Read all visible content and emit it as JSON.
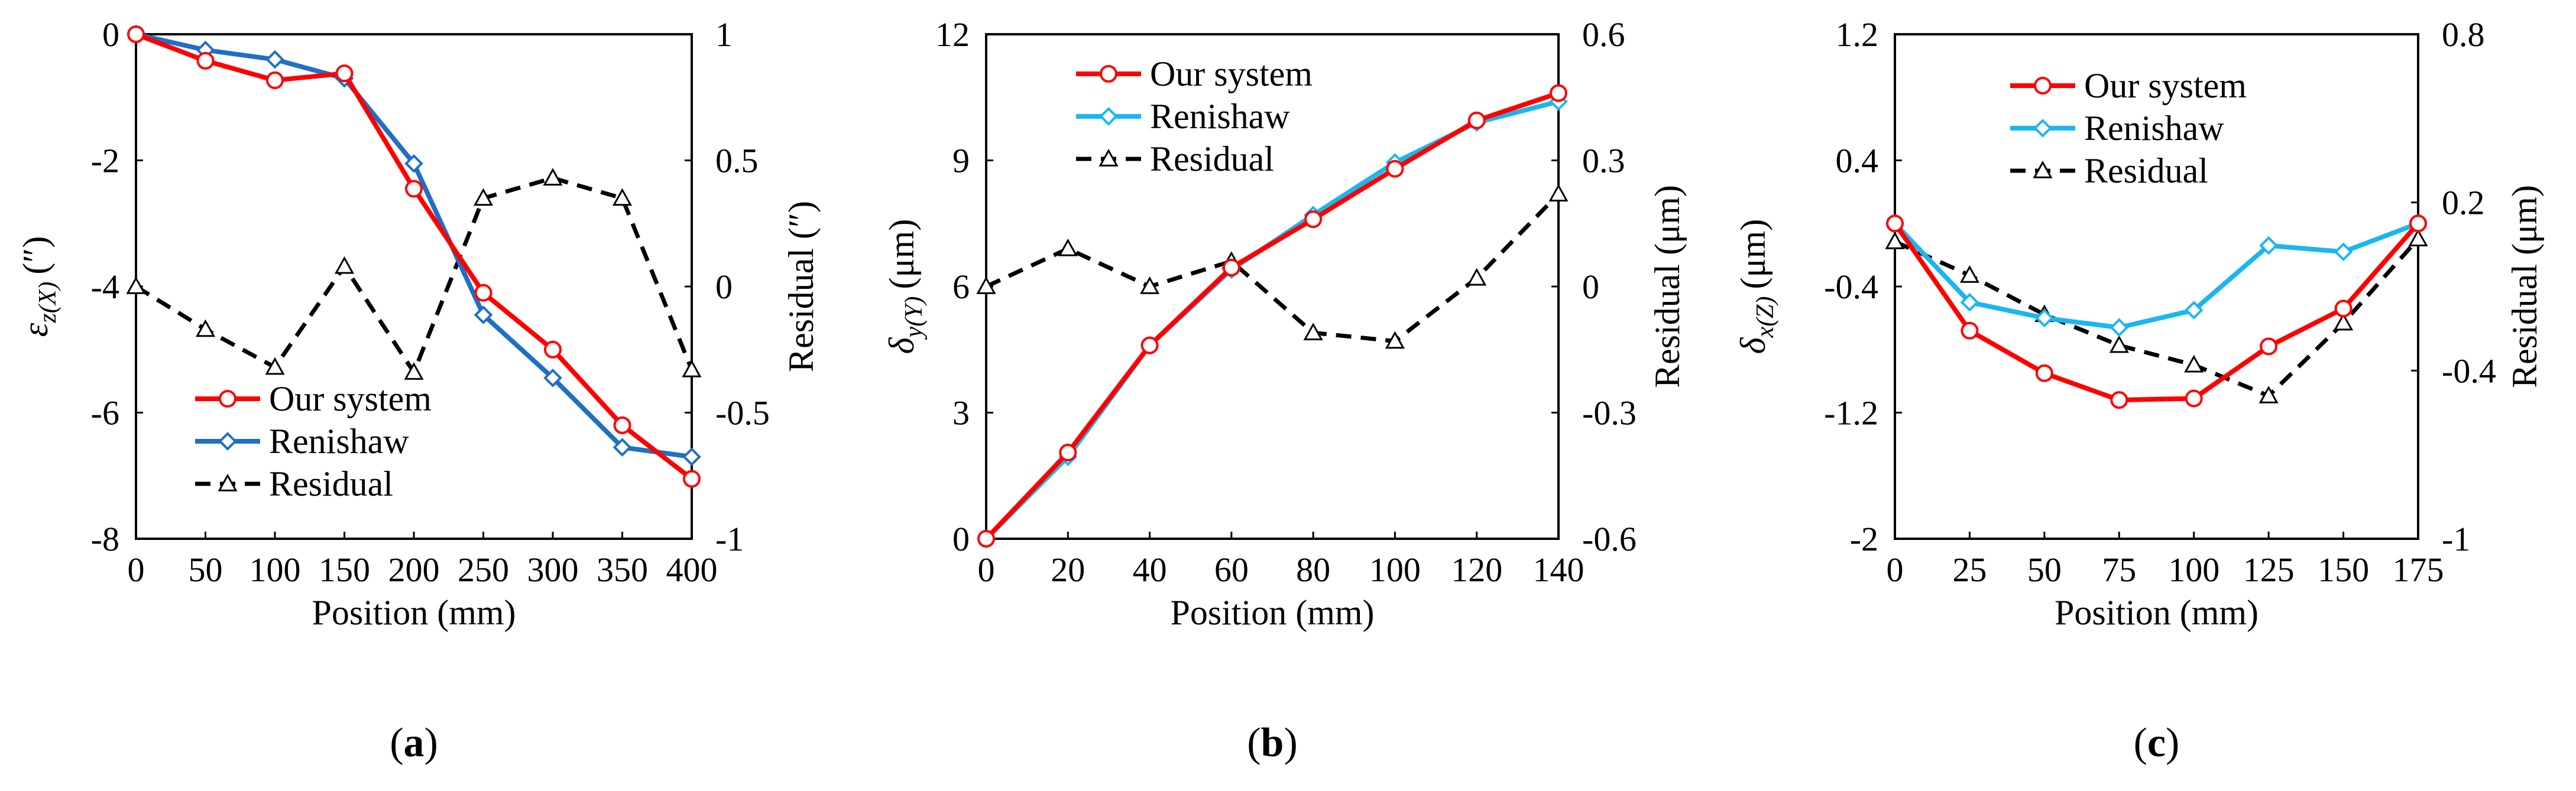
{
  "figure": {
    "panel_labels": [
      "(a)",
      "(b)",
      "(c)"
    ]
  },
  "colors": {
    "our_system": "#ff0000",
    "renishaw_a": "#1f6fc5",
    "renishaw_bc": "#1ab6f0",
    "residual": "#000000"
  },
  "chart_data": [
    {
      "type": "line",
      "panel": "(a)",
      "xlabel": "Position (mm)",
      "ylabel_main": "ε",
      "ylabel_sub": "z(X)",
      "ylabel_unit": "(″)",
      "y2label": "Residual (″)",
      "x": [
        0,
        50,
        100,
        150,
        200,
        250,
        300,
        350,
        400
      ],
      "xlim": [
        0,
        400
      ],
      "xticks": [
        "0",
        "50",
        "100",
        "150",
        "200",
        "250",
        "300",
        "350",
        "400"
      ],
      "ylim": [
        -8,
        0
      ],
      "yticks": [
        "0",
        "-2",
        "-4",
        "-6",
        "-8"
      ],
      "y2lim": [
        -1,
        1
      ],
      "y2ticks": [
        "1",
        "0.5",
        "0",
        "-0.5",
        "-1"
      ],
      "legend_position": "bottom-left",
      "series": [
        {
          "name": "Our system",
          "axis": "left",
          "marker": "circle",
          "values": [
            0,
            -0.42,
            -0.73,
            -0.62,
            -2.45,
            -4.1,
            -5.0,
            -6.2,
            -7.05
          ]
        },
        {
          "name": "Renishaw",
          "axis": "left",
          "marker": "diamond",
          "values": [
            0,
            -0.25,
            -0.4,
            -0.7,
            -2.05,
            -4.45,
            -5.45,
            -6.55,
            -6.7
          ]
        },
        {
          "name": "Residual",
          "axis": "right",
          "marker": "triangle",
          "dashed": true,
          "values": [
            0,
            -0.17,
            -0.32,
            0.08,
            -0.34,
            0.35,
            0.43,
            0.35,
            -0.33
          ]
        }
      ]
    },
    {
      "type": "line",
      "panel": "(b)",
      "xlabel": "Position (mm)",
      "ylabel_main": "δ",
      "ylabel_sub": "y(Y)",
      "ylabel_unit": "(μm)",
      "y2label": "Residual (μm)",
      "x": [
        0,
        20,
        40,
        60,
        80,
        100,
        120,
        140
      ],
      "xlim": [
        0,
        140
      ],
      "xticks": [
        "0",
        "20",
        "40",
        "60",
        "80",
        "100",
        "120",
        "140"
      ],
      "ylim": [
        0,
        12
      ],
      "yticks": [
        "12",
        "9",
        "6",
        "3",
        "0"
      ],
      "y2lim": [
        -0.6,
        0.6
      ],
      "y2ticks": [
        "0.6",
        "0.3",
        "0",
        "-0.3",
        "-0.6"
      ],
      "legend_position": "top-left",
      "series": [
        {
          "name": "Our system",
          "axis": "left",
          "marker": "circle",
          "values": [
            0,
            2.05,
            4.6,
            6.45,
            7.6,
            8.8,
            9.95,
            10.6
          ]
        },
        {
          "name": "Renishaw",
          "axis": "left",
          "marker": "diamond",
          "values": [
            0,
            1.95,
            4.6,
            6.4,
            7.7,
            8.95,
            9.9,
            10.4
          ]
        },
        {
          "name": "Residual",
          "axis": "right",
          "marker": "triangle",
          "dashed": true,
          "values": [
            0,
            0.09,
            0.0,
            0.06,
            -0.11,
            -0.13,
            0.02,
            0.22
          ]
        }
      ]
    },
    {
      "type": "line",
      "panel": "(c)",
      "xlabel": "Position (mm)",
      "ylabel_main": "δ",
      "ylabel_sub": "x(Z)",
      "ylabel_unit": "(μm)",
      "y2label": "Residual (μm)",
      "x": [
        0,
        25,
        50,
        75,
        100,
        125,
        150,
        175
      ],
      "xlim": [
        0,
        175
      ],
      "xticks": [
        "0",
        "25",
        "50",
        "75",
        "100",
        "125",
        "150",
        "175"
      ],
      "ylim": [
        -2,
        1.2
      ],
      "yticks": [
        "1.2",
        "0.4",
        "-0.4",
        "-1.2",
        "-2"
      ],
      "y2lim": [
        -1,
        0.8
      ],
      "y2ticks": [
        "0.8",
        "0.2",
        "-0.4",
        "-1"
      ],
      "legend_position": "top-left",
      "series": [
        {
          "name": "Our system",
          "axis": "left",
          "marker": "circle",
          "values": [
            0,
            -0.68,
            -0.95,
            -1.12,
            -1.11,
            -0.78,
            -0.54,
            0
          ]
        },
        {
          "name": "Renishaw",
          "axis": "left",
          "marker": "diamond",
          "values": [
            0,
            -0.5,
            -0.6,
            -0.66,
            -0.55,
            -0.14,
            -0.18,
            0
          ]
        },
        {
          "name": "Residual",
          "axis": "right",
          "marker": "triangle",
          "dashed": true,
          "values": [
            0.06,
            -0.06,
            -0.2,
            -0.31,
            -0.38,
            -0.49,
            -0.23,
            0.07
          ]
        }
      ]
    }
  ]
}
